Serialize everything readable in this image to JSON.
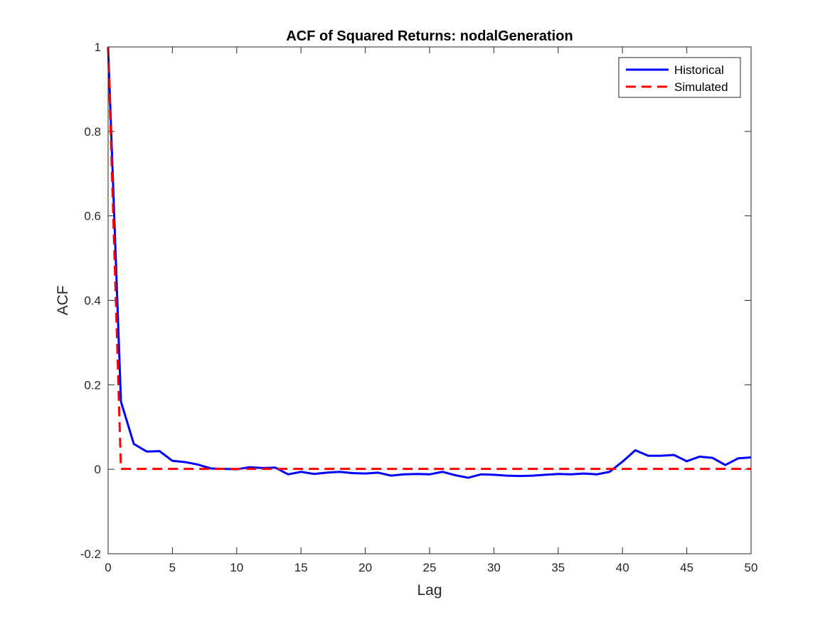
{
  "chart_data": {
    "type": "line",
    "title": "ACF of Squared Returns: nodalGeneration",
    "xlabel": "Lag",
    "ylabel": "ACF",
    "xlim": [
      0,
      50
    ],
    "ylim": [
      -0.2,
      1
    ],
    "xticks": [
      0,
      5,
      10,
      15,
      20,
      25,
      30,
      35,
      40,
      45,
      50
    ],
    "yticks": [
      -0.2,
      0,
      0.2,
      0.4,
      0.6,
      0.8,
      1
    ],
    "xtick_labels": [
      "0",
      "5",
      "10",
      "15",
      "20",
      "25",
      "30",
      "35",
      "40",
      "45",
      "50"
    ],
    "ytick_labels": [
      "-0.2",
      "0",
      "0.2",
      "0.4",
      "0.6",
      "0.8",
      "1"
    ],
    "grid": false,
    "legend_position": "top-right",
    "x": [
      0,
      1,
      2,
      3,
      4,
      5,
      6,
      7,
      8,
      9,
      10,
      11,
      12,
      13,
      14,
      15,
      16,
      17,
      18,
      19,
      20,
      21,
      22,
      23,
      24,
      25,
      26,
      27,
      28,
      29,
      30,
      31,
      32,
      33,
      34,
      35,
      36,
      37,
      38,
      39,
      40,
      41,
      42,
      43,
      44,
      45,
      46,
      47,
      48,
      49,
      50
    ],
    "series": [
      {
        "name": "Historical",
        "color": "#0000ff",
        "style": "solid",
        "values": [
          1.0,
          0.16,
          0.06,
          0.042,
          0.043,
          0.02,
          0.017,
          0.011,
          0.002,
          0.001,
          0.0,
          0.005,
          0.003,
          0.004,
          -0.012,
          -0.006,
          -0.011,
          -0.008,
          -0.006,
          -0.009,
          -0.01,
          -0.008,
          -0.015,
          -0.012,
          -0.011,
          -0.012,
          -0.006,
          -0.014,
          -0.02,
          -0.012,
          -0.013,
          -0.015,
          -0.016,
          -0.015,
          -0.013,
          -0.011,
          -0.012,
          -0.01,
          -0.012,
          -0.006,
          0.018,
          0.045,
          0.032,
          0.032,
          0.034,
          0.019,
          0.03,
          0.027,
          0.01,
          0.026,
          0.028
        ]
      },
      {
        "name": "Simulated",
        "color": "#ff0000",
        "style": "dashed",
        "values": [
          1.0,
          0.001,
          0.001,
          0.001,
          0.001,
          0.001,
          0.001,
          0.001,
          0.001,
          0.001,
          0.001,
          0.001,
          0.001,
          0.001,
          0.001,
          0.001,
          0.001,
          0.001,
          0.001,
          0.001,
          0.001,
          0.001,
          0.001,
          0.001,
          0.001,
          0.001,
          0.001,
          0.001,
          0.001,
          0.001,
          0.001,
          0.001,
          0.001,
          0.001,
          0.001,
          0.001,
          0.001,
          0.001,
          0.001,
          0.001,
          0.001,
          0.001,
          0.001,
          0.001,
          0.001,
          0.001,
          0.001,
          0.001,
          0.001,
          0.001,
          0.001
        ]
      }
    ]
  }
}
